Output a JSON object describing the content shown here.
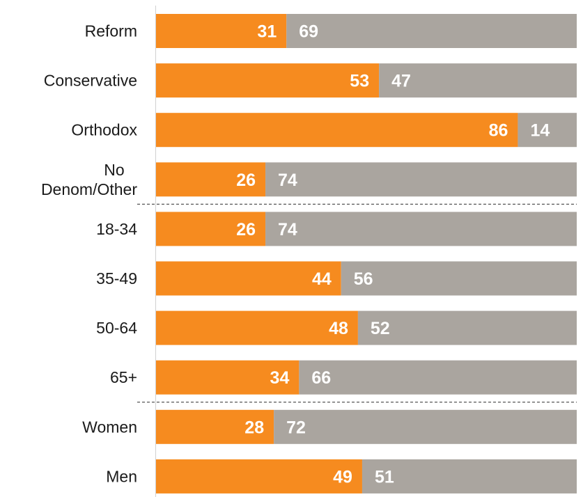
{
  "chart_data": {
    "type": "bar",
    "orientation": "horizontal",
    "stacked": true,
    "categories": [
      "Reform",
      "Conservative",
      "Orthodox",
      "No Denom/Other",
      "18-34",
      "35-49",
      "50-64",
      "65+",
      "Women",
      "Men"
    ],
    "category_lines": [
      [
        "Reform"
      ],
      [
        "Conservative"
      ],
      [
        "Orthodox"
      ],
      [
        "No",
        "Denom/Other"
      ],
      [
        "18-34"
      ],
      [
        "35-49"
      ],
      [
        "50-64"
      ],
      [
        "65+"
      ],
      [
        "Women"
      ],
      [
        "Men"
      ]
    ],
    "series": [
      {
        "values": [
          31,
          53,
          86,
          26,
          26,
          44,
          48,
          34,
          28,
          49
        ],
        "color": "#f68b1f"
      },
      {
        "values": [
          69,
          47,
          14,
          74,
          74,
          56,
          52,
          66,
          72,
          51
        ],
        "color": "#aaa59f"
      }
    ],
    "xlim": [
      0,
      100
    ],
    "groups": [
      [
        "Reform",
        "Conservative",
        "Orthodox",
        "No Denom/Other"
      ],
      [
        "18-34",
        "35-49",
        "50-64",
        "65+"
      ],
      [
        "Women",
        "Men"
      ]
    ],
    "grid": false,
    "axis_color": "#d0d0d0",
    "separator_color": "#555555"
  }
}
